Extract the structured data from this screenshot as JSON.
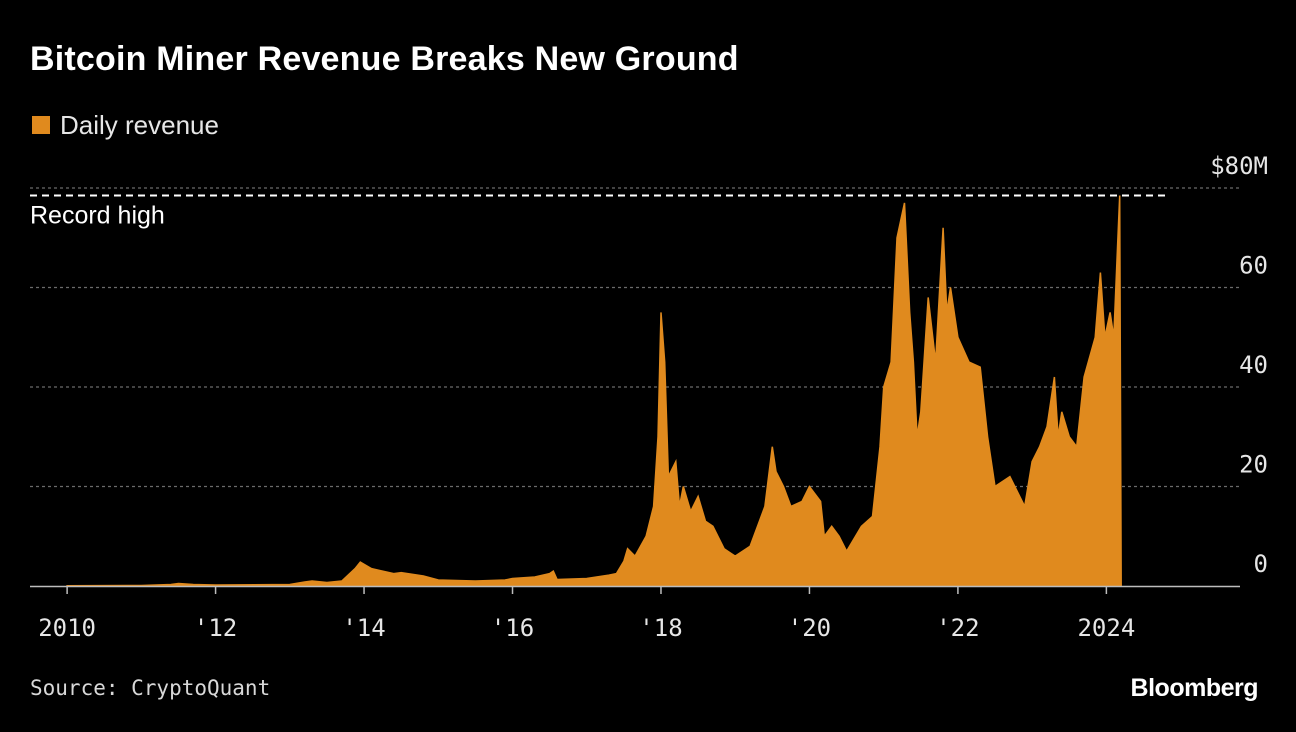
{
  "header": {
    "title": "Bitcoin Miner Revenue Breaks New Ground"
  },
  "colors": {
    "series": "#e08a1e",
    "background": "#000000",
    "grid": "#6b6b6b",
    "record_line": "#ffffff"
  },
  "chart_data": {
    "type": "area",
    "title": "Bitcoin Miner Revenue Breaks New Ground",
    "ylabel": "$M",
    "xlim": [
      2009.5,
      2025.8
    ],
    "ylim": [
      0,
      80
    ],
    "y_ticks": [
      {
        "value": 80,
        "label": "$80M"
      },
      {
        "value": 60,
        "label": "60"
      },
      {
        "value": 40,
        "label": "40"
      },
      {
        "value": 20,
        "label": "20"
      },
      {
        "value": 0,
        "label": "0"
      }
    ],
    "x_ticks": [
      {
        "value": 2010,
        "label": "2010"
      },
      {
        "value": 2012,
        "label": "'12"
      },
      {
        "value": 2014,
        "label": "'14"
      },
      {
        "value": 2016,
        "label": "'16"
      },
      {
        "value": 2018,
        "label": "'18"
      },
      {
        "value": 2020,
        "label": "'20"
      },
      {
        "value": 2022,
        "label": "'22"
      },
      {
        "value": 2024,
        "label": "2024"
      }
    ],
    "legend": [
      {
        "name": "Daily revenue",
        "color": "#e08a1e"
      }
    ],
    "annotations": [
      {
        "label": "Record high",
        "value": 78.5
      }
    ],
    "series": [
      {
        "name": "Daily revenue",
        "x": [
          2010.0,
          2011.0,
          2011.4,
          2011.5,
          2011.7,
          2012.0,
          2013.0,
          2013.2,
          2013.3,
          2013.5,
          2013.7,
          2013.88,
          2013.95,
          2014.1,
          2014.4,
          2014.5,
          2014.8,
          2015.0,
          2015.5,
          2015.9,
          2016.0,
          2016.3,
          2016.5,
          2016.55,
          2016.6,
          2017.0,
          2017.3,
          2017.4,
          2017.5,
          2017.55,
          2017.65,
          2017.8,
          2017.9,
          2017.96,
          2018.0,
          2018.05,
          2018.1,
          2018.2,
          2018.25,
          2018.3,
          2018.4,
          2018.5,
          2018.6,
          2018.7,
          2018.85,
          2018.95,
          2019.0,
          2019.2,
          2019.4,
          2019.5,
          2019.55,
          2019.65,
          2019.75,
          2019.9,
          2020.0,
          2020.15,
          2020.2,
          2020.3,
          2020.4,
          2020.5,
          2020.7,
          2020.85,
          2020.95,
          2021.0,
          2021.1,
          2021.18,
          2021.28,
          2021.35,
          2021.4,
          2021.45,
          2021.5,
          2021.6,
          2021.7,
          2021.8,
          2021.85,
          2021.9,
          2022.0,
          2022.15,
          2022.3,
          2022.4,
          2022.45,
          2022.5,
          2022.7,
          2022.9,
          2023.0,
          2023.1,
          2023.2,
          2023.3,
          2023.35,
          2023.4,
          2023.5,
          2023.6,
          2023.7,
          2023.85,
          2023.92,
          2023.98,
          2024.05,
          2024.1,
          2024.15,
          2024.18,
          2024.2
        ],
        "values": [
          0.05,
          0.1,
          0.3,
          0.5,
          0.3,
          0.2,
          0.3,
          0.8,
          1.0,
          0.7,
          1.0,
          3.5,
          4.8,
          3.5,
          2.5,
          2.7,
          2.0,
          1.2,
          1.0,
          1.2,
          1.5,
          1.8,
          2.5,
          3.0,
          1.3,
          1.5,
          2.2,
          2.5,
          5.0,
          7.5,
          6.0,
          10.0,
          16.0,
          30.0,
          55.0,
          45.0,
          22.0,
          25.0,
          16.0,
          20.0,
          15.0,
          18.0,
          13.0,
          12.0,
          7.5,
          6.5,
          6.0,
          8.0,
          16.0,
          28.0,
          23.0,
          20.0,
          16.0,
          17.0,
          20.0,
          17.0,
          10.0,
          12.0,
          10.0,
          7.0,
          12.0,
          14.0,
          28.0,
          40.0,
          45.0,
          70.0,
          77.0,
          55.0,
          45.0,
          30.0,
          35.0,
          58.0,
          45.0,
          72.0,
          55.0,
          60.0,
          50.0,
          45.0,
          44.0,
          30.0,
          25.0,
          20.0,
          22.0,
          16.0,
          25.0,
          28.0,
          32.0,
          42.0,
          30.0,
          35.0,
          30.0,
          28.0,
          42.0,
          50.0,
          63.0,
          50.0,
          55.0,
          50.0,
          68.0,
          78.5,
          0.0
        ]
      }
    ]
  },
  "footer": {
    "source": "Source: CryptoQuant",
    "brand": "Bloomberg"
  }
}
